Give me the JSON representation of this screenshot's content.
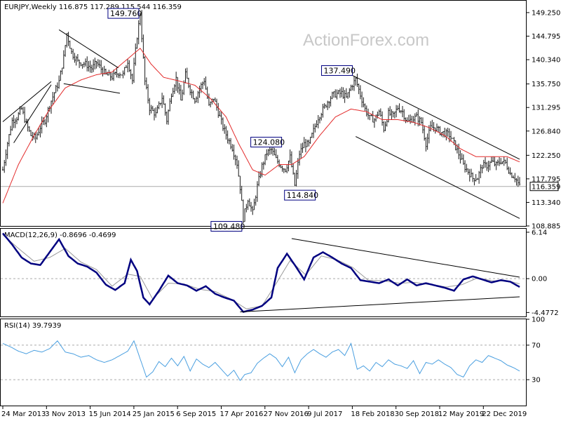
{
  "chart_data": {
    "type": "candlestick",
    "watermark": "ActionForex.com",
    "x_labels": [
      "24 Mar 2013",
      "3 Nov 2013",
      "15 Jun 2014",
      "25 Jan 2015",
      "6 Sep 2015",
      "17 Apr 2016",
      "27 Nov 2016",
      "9 Jul 2017",
      "18 Feb 2018",
      "30 Sep 2018",
      "12 May 2019",
      "22 Dec 2019"
    ],
    "colors": {
      "price": "#1a1a1a",
      "ma": "#e32b2b",
      "macd": "#000080",
      "macd_signal": "#999999",
      "rsi": "#4a9fe0",
      "line": "#000000",
      "dashed": "#aaaaaa",
      "grid": "#000000"
    },
    "price_panel": {
      "header": "EURJPY,Weekly",
      "ohlc": [
        "116.875",
        "117.289",
        "115.544",
        "116.359"
      ],
      "y_range": [
        108.885,
        151.5
      ],
      "y_ticks": [
        "149.250",
        "144.795",
        "140.340",
        "135.750",
        "131.295",
        "126.840",
        "122.250",
        "117.795",
        "113.340",
        "108.885"
      ],
      "last_price": "116.359",
      "close_anchors": [
        [
          0,
          119.5
        ],
        [
          3,
          124.6
        ],
        [
          6,
          128.8
        ],
        [
          9,
          129.4
        ],
        [
          12,
          131.0
        ],
        [
          15,
          128.2
        ],
        [
          18,
          126.0
        ],
        [
          21,
          125.5
        ],
        [
          24,
          127.6
        ],
        [
          27,
          128.9
        ],
        [
          30,
          131.8
        ],
        [
          33,
          134.1
        ],
        [
          36,
          136.2
        ],
        [
          39,
          140.8
        ],
        [
          41,
          145.3
        ],
        [
          44,
          141.7
        ],
        [
          48,
          140.0
        ],
        [
          53,
          139.5
        ],
        [
          57,
          138.7
        ],
        [
          60,
          139.8
        ],
        [
          63,
          138.6
        ],
        [
          66,
          137.5
        ],
        [
          70,
          137.1
        ],
        [
          74,
          137.9
        ],
        [
          77,
          137.5
        ],
        [
          80,
          140.1
        ],
        [
          83,
          136.4
        ],
        [
          86,
          144.8
        ],
        [
          88,
          149.0
        ],
        [
          91,
          136.2
        ],
        [
          94,
          131.2
        ],
        [
          98,
          130.0
        ],
        [
          102,
          133.2
        ],
        [
          105,
          128.9
        ],
        [
          108,
          134.0
        ],
        [
          111,
          136.8
        ],
        [
          114,
          132.6
        ],
        [
          117,
          137.5
        ],
        [
          120,
          134.7
        ],
        [
          123,
          132.8
        ],
        [
          126,
          134.9
        ],
        [
          129,
          136.5
        ],
        [
          132,
          131.5
        ],
        [
          135,
          133.1
        ],
        [
          138,
          130.4
        ],
        [
          141,
          127.6
        ],
        [
          144,
          125.5
        ],
        [
          147,
          123.7
        ],
        [
          150,
          120.7
        ],
        [
          152,
          116.2
        ],
        [
          154,
          110.3
        ],
        [
          157,
          114.0
        ],
        [
          160,
          111.4
        ],
        [
          163,
          116.4
        ],
        [
          166,
          120.2
        ],
        [
          169,
          122.7
        ],
        [
          172,
          123.3
        ],
        [
          175,
          121.5
        ],
        [
          178,
          120.3
        ],
        [
          181,
          119.6
        ],
        [
          184,
          121.9
        ],
        [
          187,
          116.6
        ],
        [
          190,
          122.6
        ],
        [
          193,
          124.4
        ],
        [
          196,
          124.3
        ],
        [
          199,
          126.9
        ],
        [
          202,
          129.4
        ],
        [
          205,
          130.9
        ],
        [
          208,
          132.4
        ],
        [
          211,
          133.6
        ],
        [
          214,
          133.9
        ],
        [
          217,
          134.0
        ],
        [
          220,
          133.1
        ],
        [
          223,
          135.2
        ],
        [
          226,
          136.6
        ],
        [
          229,
          133.7
        ],
        [
          232,
          131.0
        ],
        [
          235,
          129.3
        ],
        [
          238,
          129.0
        ],
        [
          241,
          130.6
        ],
        [
          244,
          127.3
        ],
        [
          247,
          130.2
        ],
        [
          250,
          129.7
        ],
        [
          253,
          131.3
        ],
        [
          256,
          130.5
        ],
        [
          259,
          128.5
        ],
        [
          262,
          129.1
        ],
        [
          265,
          129.5
        ],
        [
          268,
          128.5
        ],
        [
          271,
          124.5
        ],
        [
          274,
          127.5
        ],
        [
          277,
          127.5
        ],
        [
          280,
          126.7
        ],
        [
          283,
          126.4
        ],
        [
          286,
          126.1
        ],
        [
          289,
          124.5
        ],
        [
          292,
          122.5
        ],
        [
          295,
          120.4
        ],
        [
          298,
          119.2
        ],
        [
          301,
          117.9
        ],
        [
          304,
          118.0
        ],
        [
          307,
          120.3
        ],
        [
          310,
          120.3
        ],
        [
          313,
          121.0
        ],
        [
          316,
          120.4
        ],
        [
          319,
          121.2
        ],
        [
          322,
          120.8
        ],
        [
          325,
          118.8
        ],
        [
          328,
          118.1
        ],
        [
          331,
          116.4
        ]
      ],
      "ma_anchors": [
        [
          0,
          113.2
        ],
        [
          10,
          120.5
        ],
        [
          20,
          126.0
        ],
        [
          30,
          131.0
        ],
        [
          40,
          135.0
        ],
        [
          50,
          136.5
        ],
        [
          60,
          137.5
        ],
        [
          70,
          138.0
        ],
        [
          80,
          140.5
        ],
        [
          88,
          142.5
        ],
        [
          95,
          139.5
        ],
        [
          103,
          137.0
        ],
        [
          113,
          136.3
        ],
        [
          123,
          135.5
        ],
        [
          133,
          133.0
        ],
        [
          143,
          129.5
        ],
        [
          151,
          124.5
        ],
        [
          160,
          119.5
        ],
        [
          168,
          118.5
        ],
        [
          177,
          120.5
        ],
        [
          185,
          120.5
        ],
        [
          193,
          122.0
        ],
        [
          203,
          126.0
        ],
        [
          213,
          129.5
        ],
        [
          223,
          131.0
        ],
        [
          233,
          130.5
        ],
        [
          243,
          129.0
        ],
        [
          253,
          129.0
        ],
        [
          263,
          128.5
        ],
        [
          273,
          127.5
        ],
        [
          283,
          126.0
        ],
        [
          293,
          123.5
        ],
        [
          303,
          122.0
        ],
        [
          313,
          122.0
        ],
        [
          323,
          122.0
        ],
        [
          331,
          121.0
        ]
      ],
      "trendlines": [
        [
          [
            7,
            124.6
          ],
          [
            31,
            135.6
          ]
        ],
        [
          [
            0,
            128.6
          ],
          [
            31,
            136.2
          ]
        ],
        [
          [
            36,
            146.0
          ],
          [
            74,
            138.8
          ]
        ],
        [
          [
            39,
            135.8
          ],
          [
            75,
            134.0
          ]
        ],
        [
          [
            223,
            137.5
          ],
          [
            331,
            121.5
          ]
        ],
        [
          [
            226,
            125.8
          ],
          [
            331,
            110.3
          ]
        ]
      ],
      "level_line": 116.359,
      "labels": [
        {
          "text": "149.760",
          "w": 88,
          "v": 149.76
        },
        {
          "text": "137.490",
          "w": 223,
          "v": 137.49
        },
        {
          "text": "124.080",
          "w": 166,
          "v": 124.08
        },
        {
          "text": "114.840",
          "w": 184,
          "v": 114.84
        },
        {
          "text": "109.480",
          "w": 154,
          "v": 109.48
        }
      ]
    },
    "macd_panel": {
      "header": "MACD(12,26,9) -0.8696 -0.4699",
      "y_range": [
        -5.0,
        6.6
      ],
      "y_ticks": [
        "6.14",
        "0.00",
        "-4.4772"
      ],
      "zero_line": 0,
      "macd_anchors": [
        [
          0,
          6.0
        ],
        [
          6,
          4.5
        ],
        [
          12,
          2.8
        ],
        [
          18,
          2.0
        ],
        [
          24,
          1.8
        ],
        [
          30,
          3.5
        ],
        [
          36,
          5.2
        ],
        [
          42,
          3.0
        ],
        [
          48,
          2.0
        ],
        [
          54,
          1.6
        ],
        [
          60,
          0.8
        ],
        [
          66,
          -0.8
        ],
        [
          72,
          -1.5
        ],
        [
          78,
          -0.6
        ],
        [
          82,
          2.5
        ],
        [
          86,
          1.0
        ],
        [
          90,
          -2.5
        ],
        [
          94,
          -3.4
        ],
        [
          100,
          -1.6
        ],
        [
          106,
          0.4
        ],
        [
          112,
          -0.6
        ],
        [
          118,
          -0.9
        ],
        [
          124,
          -1.6
        ],
        [
          130,
          -1.0
        ],
        [
          136,
          -2.0
        ],
        [
          142,
          -2.5
        ],
        [
          148,
          -2.9
        ],
        [
          154,
          -4.4
        ],
        [
          160,
          -4.1
        ],
        [
          166,
          -3.6
        ],
        [
          172,
          -2.5
        ],
        [
          176,
          1.4
        ],
        [
          182,
          3.3
        ],
        [
          188,
          1.5
        ],
        [
          193,
          -0.1
        ],
        [
          199,
          2.8
        ],
        [
          205,
          3.5
        ],
        [
          211,
          2.8
        ],
        [
          217,
          2.0
        ],
        [
          223,
          1.4
        ],
        [
          229,
          -0.2
        ],
        [
          235,
          -0.4
        ],
        [
          241,
          -0.6
        ],
        [
          247,
          -0.1
        ],
        [
          253,
          -0.9
        ],
        [
          259,
          -0.1
        ],
        [
          265,
          -0.9
        ],
        [
          271,
          -0.6
        ],
        [
          277,
          -0.9
        ],
        [
          283,
          -1.2
        ],
        [
          289,
          -1.6
        ],
        [
          295,
          -0.1
        ],
        [
          301,
          0.3
        ],
        [
          307,
          -0.1
        ],
        [
          313,
          -0.5
        ],
        [
          319,
          -0.2
        ],
        [
          325,
          -0.4
        ],
        [
          331,
          -1.1
        ]
      ],
      "signal_anchors": [
        [
          0,
          5.8
        ],
        [
          10,
          4.0
        ],
        [
          20,
          2.3
        ],
        [
          30,
          2.8
        ],
        [
          40,
          4.0
        ],
        [
          50,
          2.2
        ],
        [
          60,
          1.2
        ],
        [
          70,
          -1.0
        ],
        [
          80,
          0.6
        ],
        [
          88,
          0.3
        ],
        [
          96,
          -2.7
        ],
        [
          106,
          -0.6
        ],
        [
          116,
          -0.7
        ],
        [
          126,
          -1.4
        ],
        [
          136,
          -1.7
        ],
        [
          146,
          -2.7
        ],
        [
          156,
          -4.0
        ],
        [
          166,
          -3.6
        ],
        [
          174,
          -1.0
        ],
        [
          184,
          2.4
        ],
        [
          194,
          0.5
        ],
        [
          204,
          3.0
        ],
        [
          214,
          2.5
        ],
        [
          224,
          1.5
        ],
        [
          234,
          -0.2
        ],
        [
          244,
          -0.3
        ],
        [
          254,
          -0.6
        ],
        [
          264,
          -0.5
        ],
        [
          274,
          -0.8
        ],
        [
          284,
          -1.1
        ],
        [
          294,
          -0.8
        ],
        [
          304,
          0.1
        ],
        [
          314,
          -0.3
        ],
        [
          324,
          -0.3
        ],
        [
          331,
          -0.7
        ]
      ],
      "trendlines": [
        [
          [
            185,
            5.3
          ],
          [
            331,
            0.2
          ]
        ],
        [
          [
            152,
            -4.4
          ],
          [
            331,
            -2.4
          ]
        ]
      ]
    },
    "rsi_panel": {
      "header": "RSI(14) 39.7939",
      "y_range": [
        0,
        100
      ],
      "y_ticks": [
        "100",
        "70",
        "30"
      ],
      "levels": [
        70,
        30
      ],
      "rsi_anchors": [
        [
          0,
          72
        ],
        [
          5,
          68
        ],
        [
          10,
          63
        ],
        [
          15,
          60
        ],
        [
          20,
          64
        ],
        [
          25,
          62
        ],
        [
          30,
          66
        ],
        [
          35,
          75
        ],
        [
          40,
          62
        ],
        [
          45,
          60
        ],
        [
          50,
          56
        ],
        [
          55,
          58
        ],
        [
          60,
          53
        ],
        [
          65,
          50
        ],
        [
          70,
          53
        ],
        [
          75,
          58
        ],
        [
          80,
          63
        ],
        [
          84,
          75
        ],
        [
          88,
          54
        ],
        [
          92,
          33
        ],
        [
          96,
          39
        ],
        [
          100,
          51
        ],
        [
          104,
          45
        ],
        [
          108,
          55
        ],
        [
          112,
          46
        ],
        [
          116,
          57
        ],
        [
          120,
          40
        ],
        [
          124,
          54
        ],
        [
          128,
          48
        ],
        [
          132,
          44
        ],
        [
          136,
          50
        ],
        [
          140,
          42
        ],
        [
          144,
          34
        ],
        [
          148,
          41
        ],
        [
          152,
          29
        ],
        [
          155,
          36
        ],
        [
          159,
          38
        ],
        [
          163,
          49
        ],
        [
          167,
          55
        ],
        [
          171,
          60
        ],
        [
          175,
          55
        ],
        [
          179,
          45
        ],
        [
          183,
          56
        ],
        [
          187,
          38
        ],
        [
          191,
          53
        ],
        [
          195,
          60
        ],
        [
          199,
          65
        ],
        [
          203,
          60
        ],
        [
          207,
          56
        ],
        [
          211,
          62
        ],
        [
          215,
          65
        ],
        [
          219,
          58
        ],
        [
          223,
          72
        ],
        [
          227,
          42
        ],
        [
          231,
          46
        ],
        [
          235,
          40
        ],
        [
          239,
          50
        ],
        [
          243,
          45
        ],
        [
          247,
          53
        ],
        [
          251,
          48
        ],
        [
          255,
          46
        ],
        [
          259,
          43
        ],
        [
          263,
          52
        ],
        [
          267,
          37
        ],
        [
          271,
          50
        ],
        [
          275,
          48
        ],
        [
          279,
          53
        ],
        [
          283,
          48
        ],
        [
          287,
          44
        ],
        [
          291,
          36
        ],
        [
          295,
          33
        ],
        [
          299,
          46
        ],
        [
          303,
          53
        ],
        [
          307,
          50
        ],
        [
          311,
          58
        ],
        [
          315,
          55
        ],
        [
          319,
          52
        ],
        [
          323,
          47
        ],
        [
          327,
          44
        ],
        [
          331,
          40
        ]
      ]
    }
  }
}
